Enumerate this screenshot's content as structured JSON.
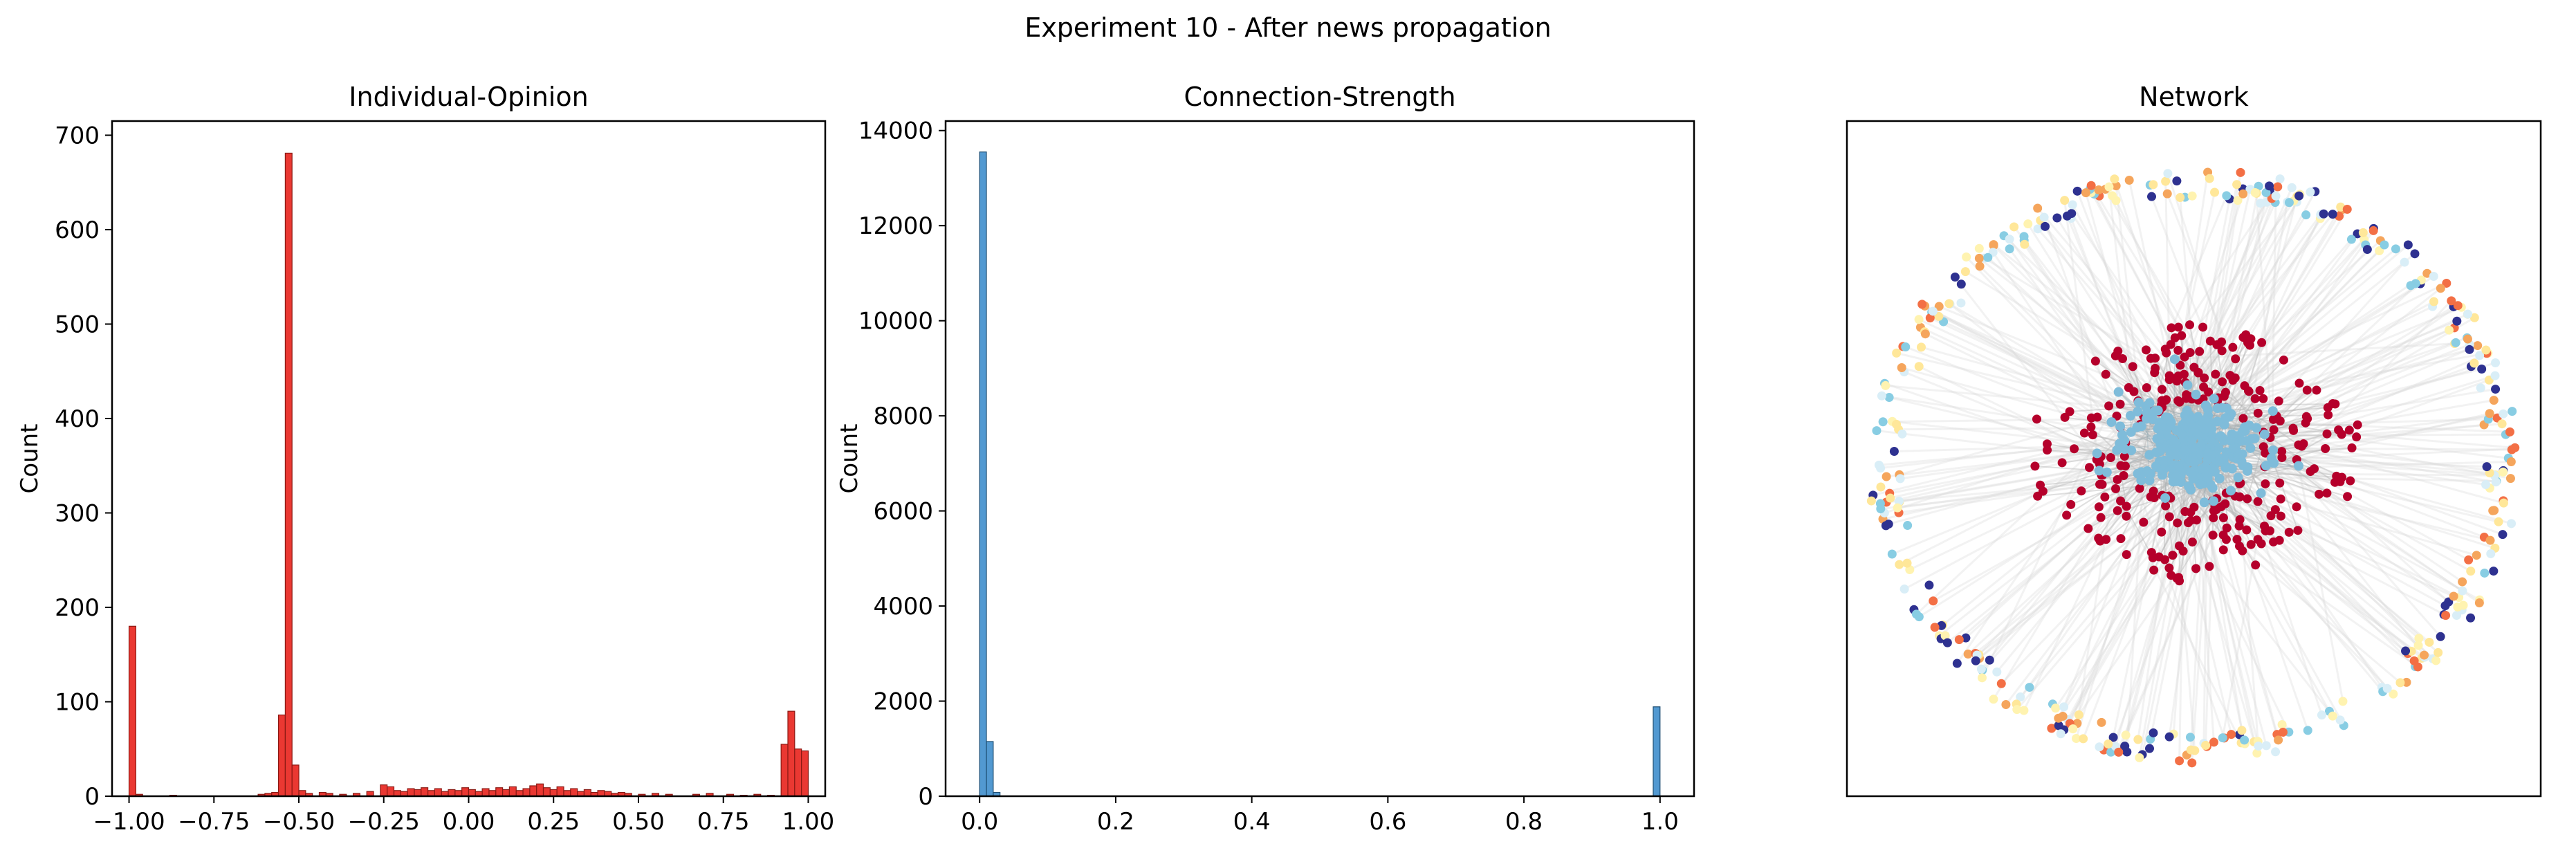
{
  "figure": {
    "suptitle": "Experiment 10 - After news propagation"
  },
  "chart_data": [
    {
      "type": "histogram",
      "title": "Individual-Opinion",
      "xlabel": "",
      "ylabel": "Count",
      "xlim": [
        -1.05,
        1.05
      ],
      "ylim": [
        0,
        715
      ],
      "xticks": [
        -1.0,
        -0.75,
        -0.5,
        -0.25,
        0.0,
        0.25,
        0.5,
        0.75,
        1.0
      ],
      "xtick_labels": [
        "−1.00",
        "−0.75",
        "−0.50",
        "−0.25",
        "0.00",
        "0.25",
        "0.50",
        "0.75",
        "1.00"
      ],
      "yticks": [
        0,
        100,
        200,
        300,
        400,
        500,
        600,
        700
      ],
      "ytick_labels": [
        "0",
        "100",
        "200",
        "300",
        "400",
        "500",
        "600",
        "700"
      ],
      "grid": false,
      "bar_color": "#e8221c",
      "edge_color": "#8b1a14",
      "bin_width": 0.02,
      "bins": [
        {
          "x": -1.0,
          "count": 180
        },
        {
          "x": -0.98,
          "count": 2
        },
        {
          "x": -0.88,
          "count": 1
        },
        {
          "x": -0.62,
          "count": 2
        },
        {
          "x": -0.6,
          "count": 3
        },
        {
          "x": -0.58,
          "count": 4
        },
        {
          "x": -0.56,
          "count": 86
        },
        {
          "x": -0.54,
          "count": 681
        },
        {
          "x": -0.52,
          "count": 33
        },
        {
          "x": -0.5,
          "count": 6
        },
        {
          "x": -0.48,
          "count": 3
        },
        {
          "x": -0.44,
          "count": 4
        },
        {
          "x": -0.42,
          "count": 3
        },
        {
          "x": -0.38,
          "count": 2
        },
        {
          "x": -0.34,
          "count": 3
        },
        {
          "x": -0.3,
          "count": 5
        },
        {
          "x": -0.26,
          "count": 12
        },
        {
          "x": -0.24,
          "count": 10
        },
        {
          "x": -0.22,
          "count": 6
        },
        {
          "x": -0.2,
          "count": 5
        },
        {
          "x": -0.18,
          "count": 8
        },
        {
          "x": -0.16,
          "count": 7
        },
        {
          "x": -0.14,
          "count": 9
        },
        {
          "x": -0.12,
          "count": 6
        },
        {
          "x": -0.1,
          "count": 8
        },
        {
          "x": -0.08,
          "count": 5
        },
        {
          "x": -0.06,
          "count": 7
        },
        {
          "x": -0.04,
          "count": 6
        },
        {
          "x": -0.02,
          "count": 9
        },
        {
          "x": 0.0,
          "count": 7
        },
        {
          "x": 0.02,
          "count": 5
        },
        {
          "x": 0.04,
          "count": 8
        },
        {
          "x": 0.06,
          "count": 6
        },
        {
          "x": 0.08,
          "count": 9
        },
        {
          "x": 0.1,
          "count": 7
        },
        {
          "x": 0.12,
          "count": 10
        },
        {
          "x": 0.14,
          "count": 6
        },
        {
          "x": 0.16,
          "count": 8
        },
        {
          "x": 0.18,
          "count": 11
        },
        {
          "x": 0.2,
          "count": 13
        },
        {
          "x": 0.22,
          "count": 9
        },
        {
          "x": 0.24,
          "count": 7
        },
        {
          "x": 0.26,
          "count": 10
        },
        {
          "x": 0.28,
          "count": 6
        },
        {
          "x": 0.3,
          "count": 8
        },
        {
          "x": 0.32,
          "count": 5
        },
        {
          "x": 0.34,
          "count": 7
        },
        {
          "x": 0.36,
          "count": 4
        },
        {
          "x": 0.38,
          "count": 6
        },
        {
          "x": 0.4,
          "count": 5
        },
        {
          "x": 0.42,
          "count": 3
        },
        {
          "x": 0.44,
          "count": 4
        },
        {
          "x": 0.46,
          "count": 3
        },
        {
          "x": 0.5,
          "count": 2
        },
        {
          "x": 0.54,
          "count": 3
        },
        {
          "x": 0.58,
          "count": 2
        },
        {
          "x": 0.66,
          "count": 2
        },
        {
          "x": 0.7,
          "count": 3
        },
        {
          "x": 0.76,
          "count": 2
        },
        {
          "x": 0.8,
          "count": 1
        },
        {
          "x": 0.84,
          "count": 2
        },
        {
          "x": 0.88,
          "count": 1
        },
        {
          "x": 0.92,
          "count": 55
        },
        {
          "x": 0.94,
          "count": 90
        },
        {
          "x": 0.96,
          "count": 50
        },
        {
          "x": 0.98,
          "count": 48
        }
      ]
    },
    {
      "type": "histogram",
      "title": "Connection-Strength",
      "xlabel": "",
      "ylabel": "Count",
      "xlim": [
        -0.05,
        1.05
      ],
      "ylim": [
        0,
        14200
      ],
      "xticks": [
        0.0,
        0.2,
        0.4,
        0.6,
        0.8,
        1.0
      ],
      "xtick_labels": [
        "0.0",
        "0.2",
        "0.4",
        "0.6",
        "0.8",
        "1.0"
      ],
      "yticks": [
        0,
        2000,
        4000,
        6000,
        8000,
        10000,
        12000,
        14000
      ],
      "ytick_labels": [
        "0",
        "2000",
        "4000",
        "6000",
        "8000",
        "10000",
        "12000",
        "14000"
      ],
      "grid": false,
      "bar_color": "#3f8ecc",
      "edge_color": "#1f4f73",
      "bin_width": 0.01,
      "bins": [
        {
          "x": 0.0,
          "count": 13550
        },
        {
          "x": 0.01,
          "count": 1150
        },
        {
          "x": 0.02,
          "count": 80
        },
        {
          "x": 0.99,
          "count": 1880
        }
      ]
    },
    {
      "type": "network",
      "title": "Network",
      "xlabel": "",
      "ylabel": "",
      "grid": false,
      "clusters": [
        {
          "role": "core",
          "color": "#7fbcda",
          "node_count": 300
        },
        {
          "role": "middle-ring",
          "color": "#b5002b",
          "node_count": 270
        },
        {
          "role": "outer-ring",
          "colors": [
            "#2e3190",
            "#fff3b0",
            "#f5a55c",
            "#d9eef7",
            "#88cde3",
            "#f36f45",
            "#ffe799"
          ],
          "node_count": 400
        }
      ],
      "edge_color": "#d9d9d9"
    }
  ]
}
